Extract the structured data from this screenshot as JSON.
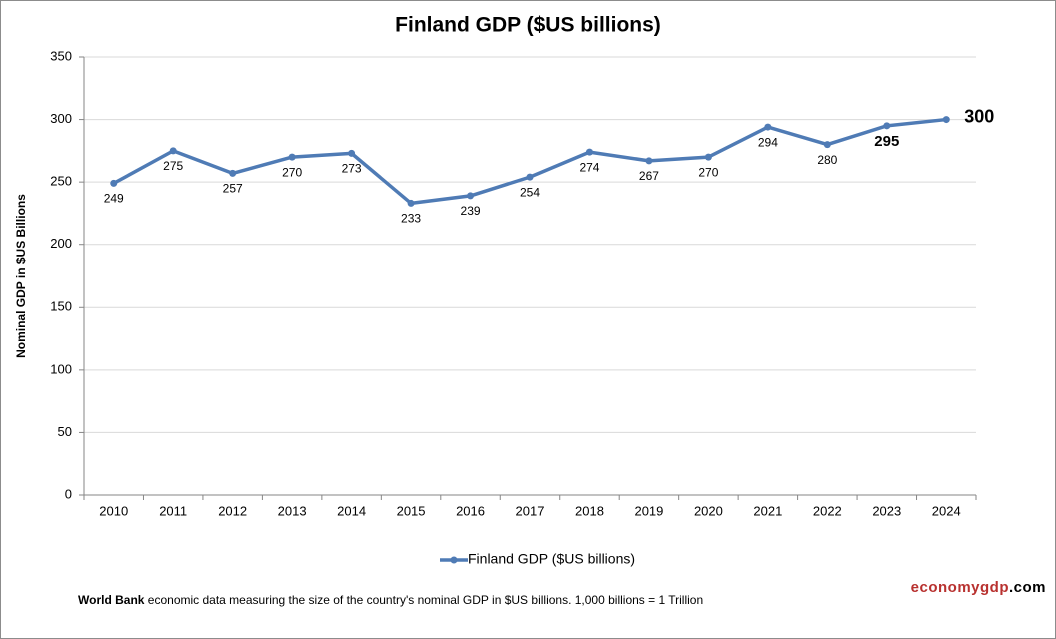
{
  "chart_data": {
    "type": "line",
    "title": "Finland GDP ($US billions)",
    "y_label": "Nominal GDP in $US Billions",
    "categories": [
      "2010",
      "2011",
      "2012",
      "2013",
      "2014",
      "2015",
      "2016",
      "2017",
      "2018",
      "2019",
      "2020",
      "2021",
      "2022",
      "2023",
      "2024"
    ],
    "series": [
      {
        "name": "Finland GDP ($US billions)",
        "color": "#4f7bb5",
        "values": [
          249,
          275,
          257,
          270,
          273,
          233,
          239,
          254,
          274,
          267,
          270,
          294,
          280,
          295,
          300
        ]
      }
    ],
    "ylim": [
      0,
      350
    ],
    "yticks": [
      0,
      50,
      100,
      150,
      200,
      250,
      300,
      350
    ],
    "grid": true,
    "legend": "bottom",
    "source": {
      "bold": "World Bank",
      "text": "economic data  measuring the size of the country's nominal GDP in $US billions. 1,000 billions = 1 Trillion"
    },
    "brand": {
      "name": "economygdp",
      "suffix": ".com"
    }
  }
}
